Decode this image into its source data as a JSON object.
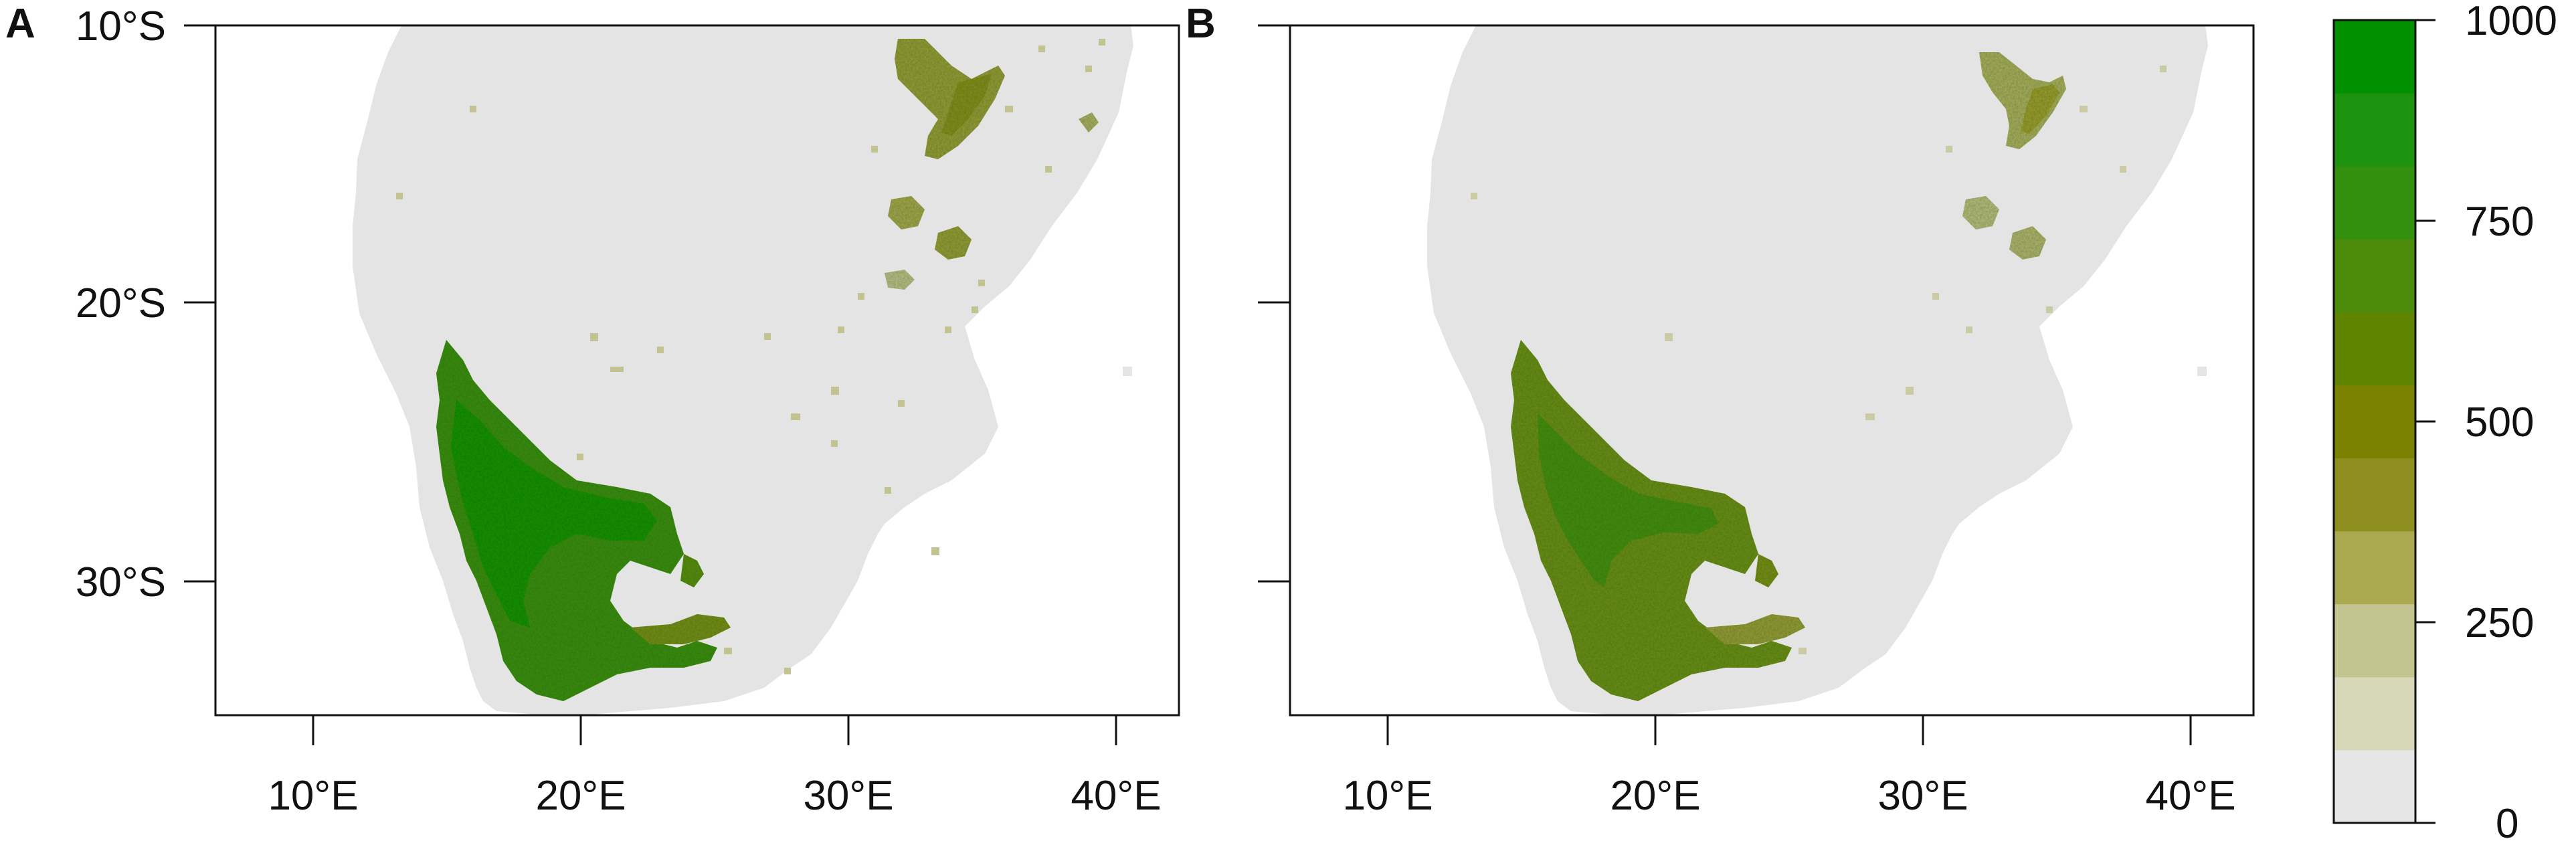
{
  "panels": [
    {
      "label": "A",
      "show_lat_labels": true
    },
    {
      "label": "B",
      "show_lat_labels": false
    }
  ],
  "lat_ticks": [
    {
      "value": -10,
      "label": "10°S"
    },
    {
      "value": -20,
      "label": "20°S"
    },
    {
      "value": -30,
      "label": "30°S"
    }
  ],
  "lon_ticks": [
    {
      "value": 10,
      "label": "10°E"
    },
    {
      "value": 20,
      "label": "20°E"
    },
    {
      "value": 30,
      "label": "30°E"
    },
    {
      "value": 40,
      "label": "40°E"
    }
  ],
  "map_extent": {
    "lon_min": 6.4,
    "lon_max": 42.4,
    "lat_min": -34.8,
    "lat_max": -10
  },
  "legend": {
    "tick_labels": [
      {
        "value": 0,
        "label": "0"
      },
      {
        "value": 250,
        "label": "250"
      },
      {
        "value": 500,
        "label": "500"
      },
      {
        "value": 750,
        "label": "750"
      },
      {
        "value": 1000,
        "label": "1000"
      }
    ],
    "range": [
      0,
      1000
    ],
    "colors": [
      "#e6e6e6",
      "#d6d8b8",
      "#c3c48f",
      "#aaa94f",
      "#8f8e20",
      "#7b8200",
      "#5e8400",
      "#4b8a0a",
      "#33900e",
      "#1d920e",
      "#009000"
    ]
  },
  "colors": {
    "land": "#e4e4e4",
    "frame": "#111111"
  }
}
